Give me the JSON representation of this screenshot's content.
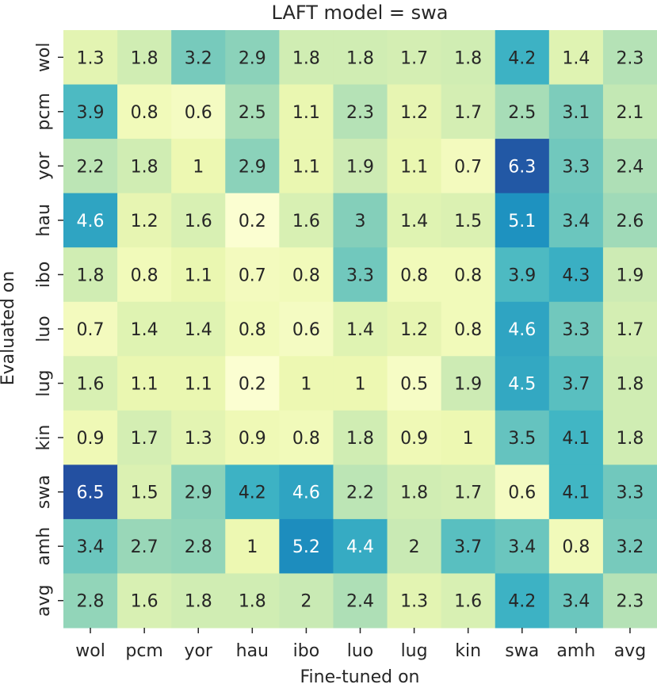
{
  "chart_data": {
    "type": "heatmap",
    "title": "LAFT model = swa",
    "xlabel": "Fine-tuned on",
    "ylabel": "Evaluated on",
    "x_categories": [
      "wol",
      "pcm",
      "yor",
      "hau",
      "ibo",
      "luo",
      "lug",
      "kin",
      "swa",
      "amh",
      "avg"
    ],
    "y_categories": [
      "wol",
      "pcm",
      "yor",
      "hau",
      "ibo",
      "luo",
      "lug",
      "kin",
      "swa",
      "amh",
      "avg"
    ],
    "colormap": "YlGnBu",
    "value_range": [
      0,
      6.5
    ],
    "values": [
      [
        "1.3",
        "1.8",
        "3.2",
        "2.9",
        "1.8",
        "1.8",
        "1.7",
        "1.8",
        "4.2",
        "1.4",
        "2.3"
      ],
      [
        "3.9",
        "0.8",
        "0.6",
        "2.5",
        "1.1",
        "2.3",
        "1.2",
        "1.7",
        "2.5",
        "3.1",
        "2.1"
      ],
      [
        "2.2",
        "1.8",
        "1",
        "2.9",
        "1.1",
        "1.9",
        "1.1",
        "0.7",
        "6.3",
        "3.3",
        "2.4"
      ],
      [
        "4.6",
        "1.2",
        "1.6",
        "0.2",
        "1.6",
        "3",
        "1.4",
        "1.5",
        "5.1",
        "3.4",
        "2.6"
      ],
      [
        "1.8",
        "0.8",
        "1.1",
        "0.7",
        "0.8",
        "3.3",
        "0.8",
        "0.8",
        "3.9",
        "4.3",
        "1.9"
      ],
      [
        "0.7",
        "1.4",
        "1.4",
        "0.8",
        "0.6",
        "1.4",
        "1.2",
        "0.8",
        "4.6",
        "3.3",
        "1.7"
      ],
      [
        "1.6",
        "1.1",
        "1.1",
        "0.2",
        "1",
        "1",
        "0.5",
        "1.9",
        "4.5",
        "3.7",
        "1.8"
      ],
      [
        "0.9",
        "1.7",
        "1.3",
        "0.9",
        "0.8",
        "1.8",
        "0.9",
        "1",
        "3.5",
        "4.1",
        "1.8"
      ],
      [
        "6.5",
        "1.5",
        "2.9",
        "4.2",
        "4.6",
        "2.2",
        "1.8",
        "1.7",
        "0.6",
        "4.1",
        "3.3"
      ],
      [
        "3.4",
        "2.7",
        "2.8",
        "1",
        "5.2",
        "4.4",
        "2",
        "3.7",
        "3.4",
        "0.8",
        "3.2"
      ],
      [
        "2.8",
        "1.6",
        "1.8",
        "1.8",
        "2",
        "2.4",
        "1.3",
        "1.6",
        "4.2",
        "3.4",
        "2.3"
      ]
    ]
  }
}
